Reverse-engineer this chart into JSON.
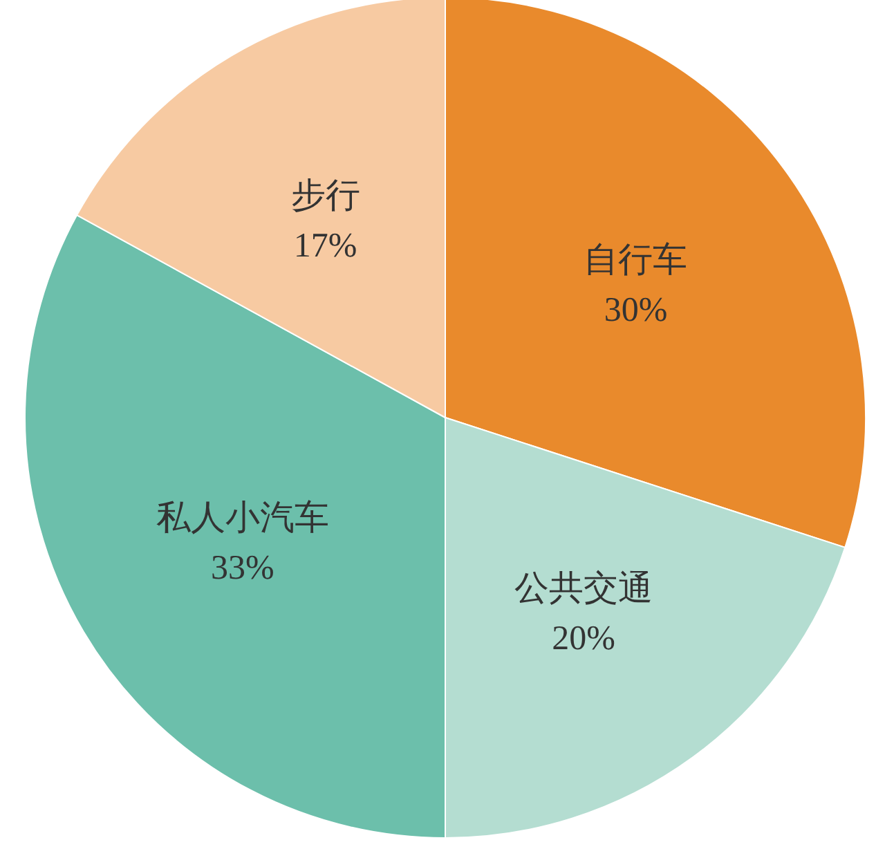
{
  "chart_data": {
    "type": "pie",
    "categories": [
      "自行车",
      "公共交通",
      "私人小汽车",
      "步行"
    ],
    "values": [
      30,
      20,
      33,
      17
    ],
    "value_labels": [
      "30%",
      "20%",
      "33%",
      "17%"
    ],
    "colors": [
      "#e98a2c",
      "#b4ddd1",
      "#6cbfab",
      "#f7caa2"
    ]
  }
}
